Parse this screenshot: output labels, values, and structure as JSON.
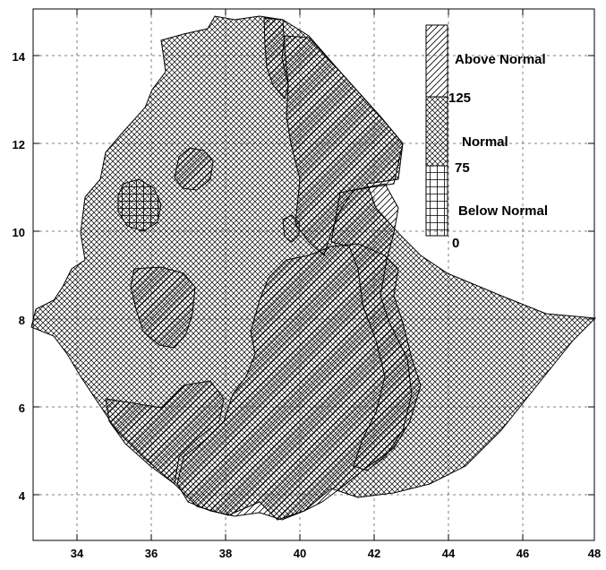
{
  "map": {
    "x_axis": {
      "ticks": [
        "34",
        "36",
        "38",
        "40",
        "42",
        "44",
        "46",
        "48"
      ]
    },
    "y_axis": {
      "ticks": [
        "4",
        "6",
        "8",
        "10",
        "12",
        "14"
      ]
    }
  },
  "legend": {
    "above_label": "Above Normal",
    "normal_label": "Normal",
    "below_label": "Below Normal",
    "threshold_upper": "125",
    "threshold_lower": "75",
    "threshold_bottom": "0"
  },
  "colors": {
    "ink": "#000000",
    "background": "#ffffff"
  }
}
